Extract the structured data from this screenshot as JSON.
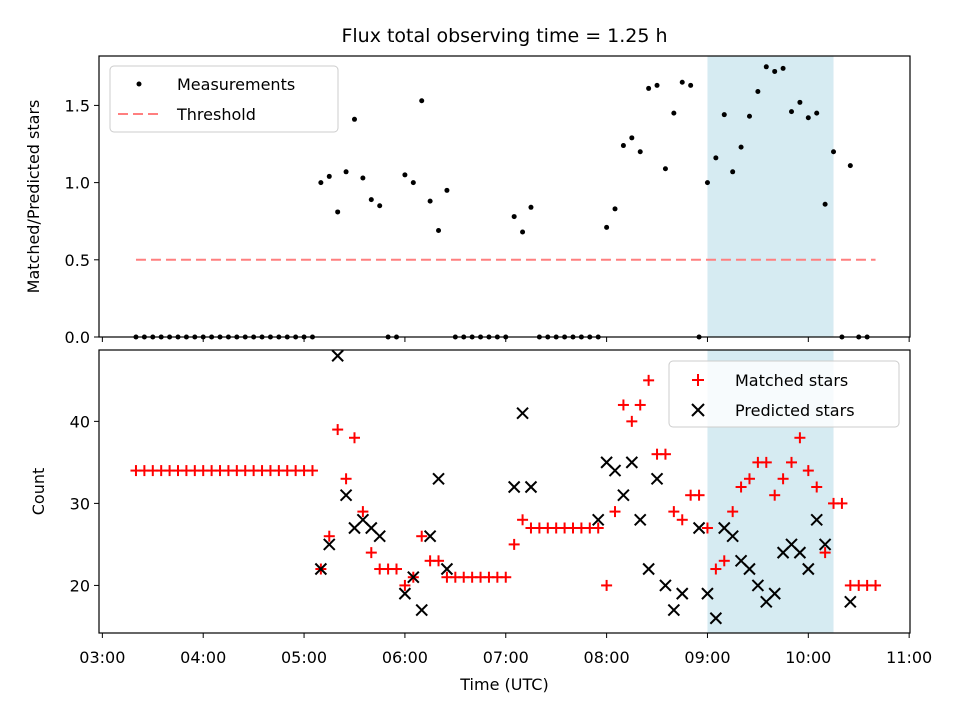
{
  "chart_data": [
    {
      "type": "scatter",
      "title": "Flux total observing time = 1.25 h",
      "xlabel": "",
      "ylabel": "Matched/Predicted stars",
      "xlim": [
        "03:00",
        "11:00"
      ],
      "ylim": [
        0,
        1.82
      ],
      "yticks": [
        "0.0",
        "0.5",
        "1.0",
        "1.5"
      ],
      "ytick_values": [
        0,
        0.5,
        1.0,
        1.5
      ],
      "highlight_span": {
        "x_start": "09:00",
        "x_end": "10:15",
        "color": "#add8e6"
      },
      "legend": {
        "placement": "top-left",
        "entries": [
          "Measurements",
          "Threshold"
        ]
      },
      "threshold": {
        "name": "Threshold",
        "y": 0.5,
        "x_start": "03:20",
        "x_end": "10:40",
        "color": "#ff7f7f"
      },
      "series": [
        {
          "name": "Measurements",
          "color": "#000000",
          "points": [
            [
              "03:20",
              0
            ],
            [
              "03:25",
              0
            ],
            [
              "03:30",
              0
            ],
            [
              "03:35",
              0
            ],
            [
              "03:40",
              0
            ],
            [
              "03:45",
              0
            ],
            [
              "03:50",
              0
            ],
            [
              "03:55",
              0
            ],
            [
              "04:00",
              0
            ],
            [
              "04:05",
              0
            ],
            [
              "04:10",
              0
            ],
            [
              "04:15",
              0
            ],
            [
              "04:20",
              0
            ],
            [
              "04:25",
              0
            ],
            [
              "04:30",
              0
            ],
            [
              "04:35",
              0
            ],
            [
              "04:40",
              0
            ],
            [
              "04:45",
              0
            ],
            [
              "04:50",
              0
            ],
            [
              "04:55",
              0
            ],
            [
              "05:00",
              0
            ],
            [
              "05:05",
              0
            ],
            [
              "05:10",
              1.0
            ],
            [
              "05:15",
              1.04
            ],
            [
              "05:20",
              0.81
            ],
            [
              "05:25",
              1.07
            ],
            [
              "05:30",
              1.41
            ],
            [
              "05:35",
              1.03
            ],
            [
              "05:40",
              0.89
            ],
            [
              "05:45",
              0.85
            ],
            [
              "05:50",
              0
            ],
            [
              "05:55",
              0
            ],
            [
              "06:00",
              1.05
            ],
            [
              "06:05",
              1.0
            ],
            [
              "06:10",
              1.53
            ],
            [
              "06:15",
              0.88
            ],
            [
              "06:20",
              0.69
            ],
            [
              "06:25",
              0.95
            ],
            [
              "06:30",
              0
            ],
            [
              "06:35",
              0
            ],
            [
              "06:40",
              0
            ],
            [
              "06:45",
              0
            ],
            [
              "06:50",
              0
            ],
            [
              "06:55",
              0
            ],
            [
              "07:00",
              0
            ],
            [
              "07:05",
              0.78
            ],
            [
              "07:10",
              0.68
            ],
            [
              "07:15",
              0.84
            ],
            [
              "07:20",
              0
            ],
            [
              "07:25",
              0
            ],
            [
              "07:30",
              0
            ],
            [
              "07:35",
              0
            ],
            [
              "07:40",
              0
            ],
            [
              "07:45",
              0
            ],
            [
              "07:50",
              0
            ],
            [
              "07:55",
              0
            ],
            [
              "08:00",
              0.71
            ],
            [
              "08:05",
              0.83
            ],
            [
              "08:10",
              1.24
            ],
            [
              "08:15",
              1.29
            ],
            [
              "08:20",
              1.2
            ],
            [
              "08:25",
              1.61
            ],
            [
              "08:30",
              1.63
            ],
            [
              "08:35",
              1.09
            ],
            [
              "08:40",
              1.45
            ],
            [
              "08:45",
              1.65
            ],
            [
              "08:50",
              1.63
            ],
            [
              "08:55",
              0
            ],
            [
              "09:00",
              1.0
            ],
            [
              "09:05",
              1.16
            ],
            [
              "09:10",
              1.44
            ],
            [
              "09:15",
              1.07
            ],
            [
              "09:20",
              1.23
            ],
            [
              "09:25",
              1.43
            ],
            [
              "09:30",
              1.59
            ],
            [
              "09:35",
              1.75
            ],
            [
              "09:40",
              1.72
            ],
            [
              "09:45",
              1.74
            ],
            [
              "09:50",
              1.46
            ],
            [
              "09:55",
              1.52
            ],
            [
              "10:00",
              1.42
            ],
            [
              "10:05",
              1.45
            ],
            [
              "10:10",
              0.86
            ],
            [
              "10:15",
              1.2
            ],
            [
              "10:20",
              0
            ],
            [
              "10:25",
              1.11
            ],
            [
              "10:30",
              0
            ],
            [
              "10:35",
              0
            ]
          ]
        }
      ]
    },
    {
      "type": "scatter",
      "title": "",
      "xlabel": "Time (UTC)",
      "ylabel": "Count",
      "xlim": [
        "03:00",
        "11:00"
      ],
      "ylim": [
        14.2,
        48.7
      ],
      "xticks": [
        "03:00",
        "04:00",
        "05:00",
        "06:00",
        "07:00",
        "08:00",
        "09:00",
        "10:00",
        "11:00"
      ],
      "yticks": [
        "20",
        "30",
        "40"
      ],
      "ytick_values": [
        20,
        30,
        40
      ],
      "highlight_span": {
        "x_start": "09:00",
        "x_end": "10:15",
        "color": "#add8e6"
      },
      "legend": {
        "placement": "top-right",
        "entries": [
          "Matched stars",
          "Predicted stars"
        ]
      },
      "series": [
        {
          "name": "Matched stars",
          "marker": "plus",
          "color": "#ff0000",
          "points": [
            [
              "03:20",
              34
            ],
            [
              "03:25",
              34
            ],
            [
              "03:30",
              34
            ],
            [
              "03:35",
              34
            ],
            [
              "03:40",
              34
            ],
            [
              "03:45",
              34
            ],
            [
              "03:50",
              34
            ],
            [
              "03:55",
              34
            ],
            [
              "04:00",
              34
            ],
            [
              "04:05",
              34
            ],
            [
              "04:10",
              34
            ],
            [
              "04:15",
              34
            ],
            [
              "04:20",
              34
            ],
            [
              "04:25",
              34
            ],
            [
              "04:30",
              34
            ],
            [
              "04:35",
              34
            ],
            [
              "04:40",
              34
            ],
            [
              "04:45",
              34
            ],
            [
              "04:50",
              34
            ],
            [
              "04:55",
              34
            ],
            [
              "05:00",
              34
            ],
            [
              "05:05",
              34
            ],
            [
              "05:10",
              22
            ],
            [
              "05:15",
              26
            ],
            [
              "05:20",
              39
            ],
            [
              "05:25",
              33
            ],
            [
              "05:30",
              38
            ],
            [
              "05:35",
              29
            ],
            [
              "05:40",
              24
            ],
            [
              "05:45",
              22
            ],
            [
              "05:50",
              22
            ],
            [
              "05:55",
              22
            ],
            [
              "06:00",
              20
            ],
            [
              "06:05",
              21
            ],
            [
              "06:10",
              26
            ],
            [
              "06:15",
              23
            ],
            [
              "06:20",
              23
            ],
            [
              "06:25",
              21
            ],
            [
              "06:30",
              21
            ],
            [
              "06:35",
              21
            ],
            [
              "06:40",
              21
            ],
            [
              "06:45",
              21
            ],
            [
              "06:50",
              21
            ],
            [
              "06:55",
              21
            ],
            [
              "07:00",
              21
            ],
            [
              "07:05",
              25
            ],
            [
              "07:10",
              28
            ],
            [
              "07:15",
              27
            ],
            [
              "07:20",
              27
            ],
            [
              "07:25",
              27
            ],
            [
              "07:30",
              27
            ],
            [
              "07:35",
              27
            ],
            [
              "07:40",
              27
            ],
            [
              "07:45",
              27
            ],
            [
              "07:50",
              27
            ],
            [
              "07:55",
              27
            ],
            [
              "08:00",
              20
            ],
            [
              "08:05",
              29
            ],
            [
              "08:10",
              42
            ],
            [
              "08:15",
              40
            ],
            [
              "08:20",
              42
            ],
            [
              "08:25",
              45
            ],
            [
              "08:30",
              36
            ],
            [
              "08:35",
              36
            ],
            [
              "08:40",
              29
            ],
            [
              "08:45",
              28
            ],
            [
              "08:50",
              31
            ],
            [
              "08:55",
              31
            ],
            [
              "09:00",
              27
            ],
            [
              "09:05",
              22
            ],
            [
              "09:10",
              23
            ],
            [
              "09:15",
              29
            ],
            [
              "09:20",
              32
            ],
            [
              "09:25",
              33
            ],
            [
              "09:30",
              35
            ],
            [
              "09:35",
              35
            ],
            [
              "09:40",
              31
            ],
            [
              "09:45",
              33
            ],
            [
              "09:50",
              35
            ],
            [
              "09:55",
              38
            ],
            [
              "10:00",
              34
            ],
            [
              "10:05",
              32
            ],
            [
              "10:10",
              24
            ],
            [
              "10:15",
              30
            ],
            [
              "10:20",
              30
            ],
            [
              "10:25",
              20
            ],
            [
              "10:30",
              20
            ],
            [
              "10:35",
              20
            ],
            [
              "10:40",
              20
            ]
          ]
        },
        {
          "name": "Predicted stars",
          "marker": "x",
          "color": "#000000",
          "points": [
            [
              "05:10",
              22
            ],
            [
              "05:15",
              25
            ],
            [
              "05:20",
              48
            ],
            [
              "05:25",
              31
            ],
            [
              "05:30",
              27
            ],
            [
              "05:35",
              28
            ],
            [
              "05:40",
              27
            ],
            [
              "05:45",
              26
            ],
            [
              "06:00",
              19
            ],
            [
              "06:05",
              21
            ],
            [
              "06:10",
              17
            ],
            [
              "06:15",
              26
            ],
            [
              "06:20",
              33
            ],
            [
              "06:25",
              22
            ],
            [
              "07:05",
              32
            ],
            [
              "07:10",
              41
            ],
            [
              "07:15",
              32
            ],
            [
              "07:55",
              28
            ],
            [
              "08:00",
              35
            ],
            [
              "08:05",
              34
            ],
            [
              "08:10",
              31
            ],
            [
              "08:15",
              35
            ],
            [
              "08:20",
              28
            ],
            [
              "08:25",
              22
            ],
            [
              "08:30",
              33
            ],
            [
              "08:35",
              20
            ],
            [
              "08:40",
              17
            ],
            [
              "08:45",
              19
            ],
            [
              "08:55",
              27
            ],
            [
              "09:00",
              19
            ],
            [
              "09:05",
              16
            ],
            [
              "09:10",
              27
            ],
            [
              "09:15",
              26
            ],
            [
              "09:20",
              23
            ],
            [
              "09:25",
              22
            ],
            [
              "09:30",
              20
            ],
            [
              "09:35",
              18
            ],
            [
              "09:40",
              19
            ],
            [
              "09:45",
              24
            ],
            [
              "09:50",
              25
            ],
            [
              "09:55",
              24
            ],
            [
              "10:00",
              22
            ],
            [
              "10:05",
              28
            ],
            [
              "10:10",
              25
            ],
            [
              "10:25",
              18
            ]
          ]
        }
      ]
    }
  ]
}
